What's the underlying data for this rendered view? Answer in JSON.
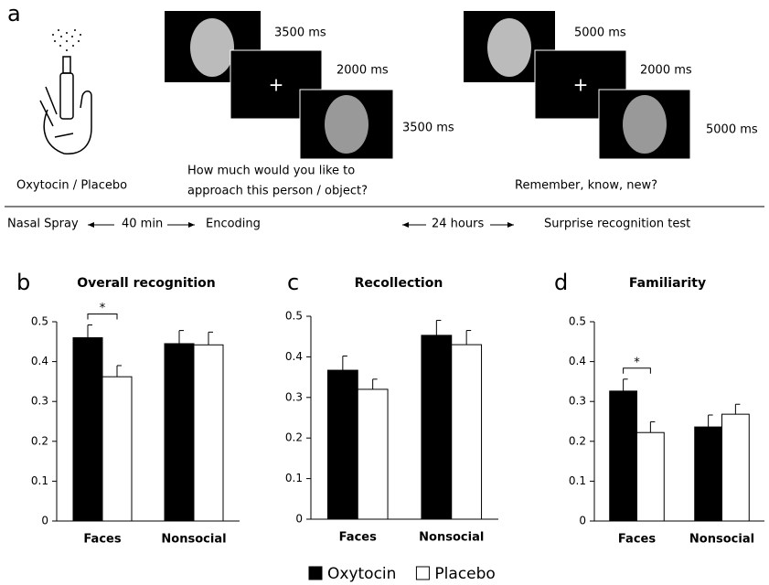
{
  "panel_a": {
    "letter": "a",
    "durations": [
      "3500 ms",
      "2000 ms",
      "3500 ms",
      "5000 ms",
      "2000 ms",
      "5000 ms"
    ],
    "fixation": "+",
    "treatment": "Oxytocin / Placebo",
    "question": [
      "How much would you like to",
      "approach this person / object?"
    ],
    "test_question": "Remember, know, new?",
    "timeline": [
      "Nasal Spray",
      "40 min",
      "Encoding",
      "24 hours",
      "Surprise recognition test"
    ]
  },
  "chart_data": [
    {
      "type": "bar",
      "panel": "b",
      "title": "Overall recognition",
      "categories": [
        "Faces",
        "Nonsocial"
      ],
      "series": [
        {
          "name": "Oxytocin",
          "color": "#000000",
          "values": [
            0.46,
            0.445
          ],
          "errors": [
            0.032,
            0.033
          ]
        },
        {
          "name": "Placebo",
          "color": "#ffffff",
          "values": [
            0.362,
            0.442
          ],
          "errors": [
            0.028,
            0.032
          ]
        }
      ],
      "ylim": [
        0,
        0.5
      ],
      "yticks": [
        0,
        0.1,
        0.2,
        0.3,
        0.4,
        0.5
      ],
      "significance": [
        {
          "category": "Faces",
          "label": "*"
        }
      ]
    },
    {
      "type": "bar",
      "panel": "c",
      "title": "Recollection",
      "categories": [
        "Faces",
        "Nonsocial"
      ],
      "series": [
        {
          "color": "#000000",
          "values": [
            0.367,
            0.453
          ],
          "errors": [
            0.035,
            0.037
          ]
        },
        {
          "color": "#ffffff",
          "values": [
            0.32,
            0.43
          ],
          "errors": [
            0.025,
            0.035
          ]
        }
      ],
      "ylim": [
        0,
        0.5
      ],
      "yticks": [
        0,
        0.1,
        0.2,
        0.3,
        0.4,
        0.5
      ]
    },
    {
      "type": "bar",
      "panel": "d",
      "title": "Familiarity",
      "categories": [
        "Faces",
        "Nonsocial"
      ],
      "series": [
        {
          "color": "#000000",
          "values": [
            0.326,
            0.236
          ],
          "errors": [
            0.03,
            0.03
          ]
        },
        {
          "color": "#ffffff",
          "values": [
            0.222,
            0.268
          ],
          "errors": [
            0.027,
            0.025
          ]
        }
      ],
      "ylim": [
        0,
        0.5
      ],
      "yticks": [
        0,
        0.1,
        0.2,
        0.3,
        0.4,
        0.5
      ],
      "significance": [
        {
          "category": "Faces",
          "label": "*"
        }
      ]
    }
  ]
}
